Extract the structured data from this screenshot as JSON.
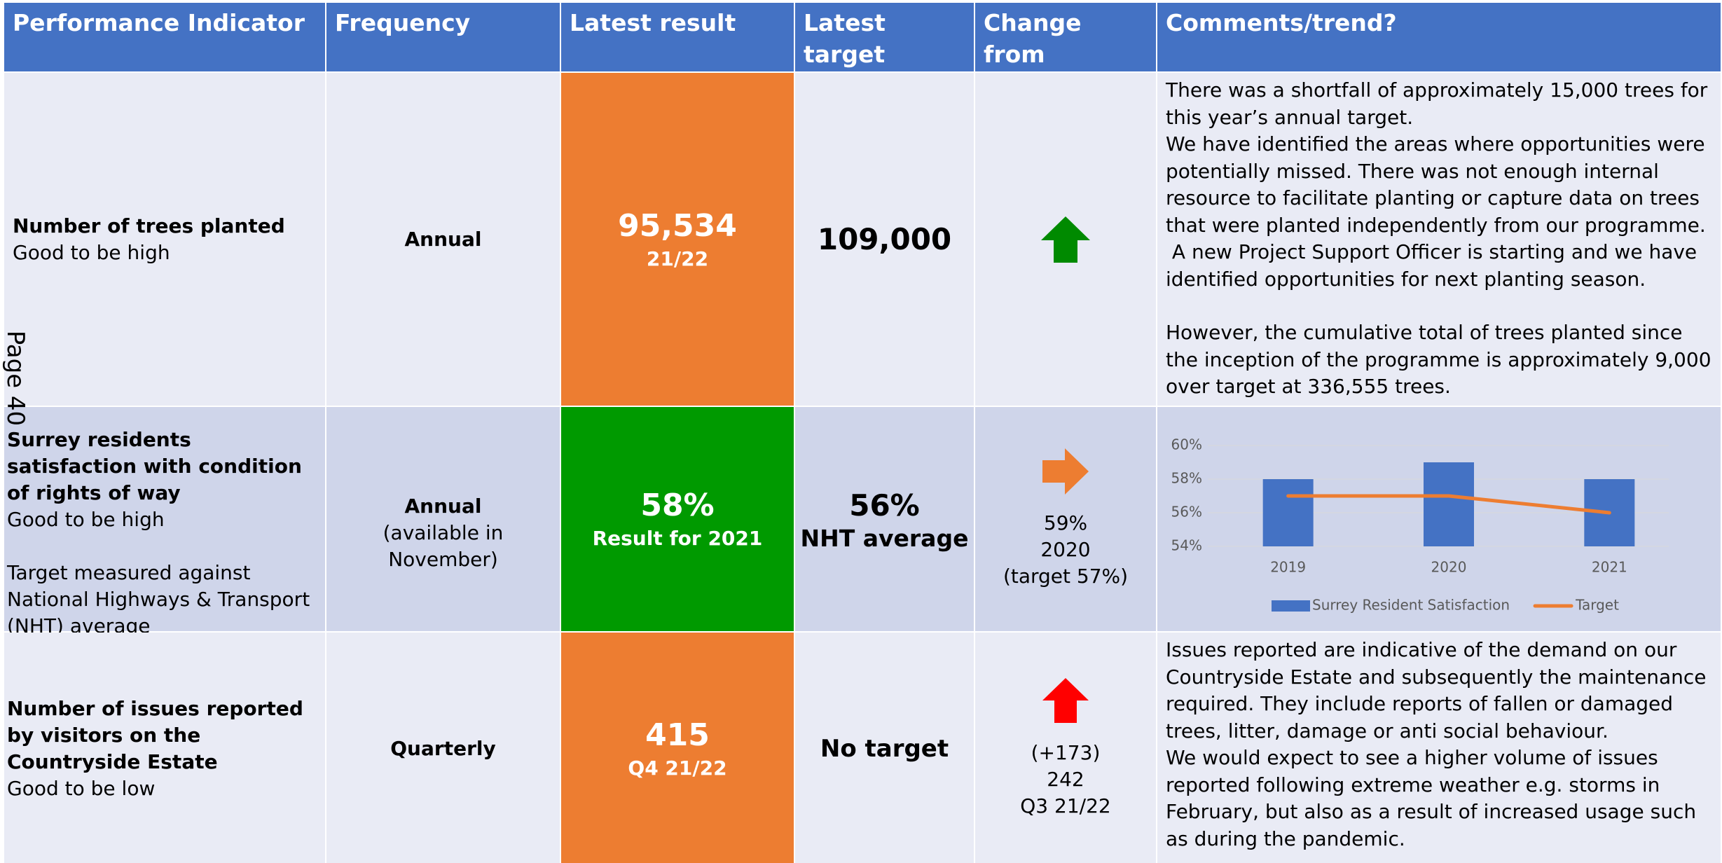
{
  "page_label": "Page 40",
  "table": {
    "headers": [
      "Performance Indicator",
      "Frequency",
      "Latest result",
      "Latest target",
      "Change from previous result",
      "Comments/trend?"
    ],
    "rows": [
      {
        "indicator": [
          "Number of trees planted"
        ],
        "polarity": "Good to be high",
        "frequency": "Annual",
        "result": "95,534",
        "result_note": "21/22",
        "target": "109,000",
        "comments": [
          "There was a shortfall of approximately 15,000 trees for this year’s annual target.",
          "We have identified the areas where opportunities were potentially missed. There was not enough internal resource to facilitate planting or capture data on trees that were planted independently from our programme.",
          " A new Project Support Officer is starting and we have identified opportunities for next planting season.",
          "However, the cumulative total of trees planted since the inception of the programme is approximately 9,000 over target at 336,555 trees."
        ]
      },
      {
        "indicator": [
          "Surrey residents satisfaction with condition of rights of way"
        ],
        "polarity": "Good to be high",
        "indicator_note": "Target measured against National Highways & Transport (NHT) average",
        "frequency": "Annual",
        "frequency_note": "(available in November)",
        "result": "58%",
        "result_note": "Result for 2021",
        "target": "56%",
        "target_note": "NHT average",
        "change": [
          "59%",
          "2020",
          "(target 57%)"
        ]
      },
      {
        "indicator": [
          "Number of issues reported by visitors on the Countryside Estate"
        ],
        "polarity": "Good to be low",
        "frequency": "Quarterly",
        "result": "415",
        "result_note": "Q4 21/22",
        "target": "No target",
        "change": [
          "(+173)",
          "242",
          "Q3 21/22"
        ],
        "comments": [
          "Issues reported are indicative of the demand on our Countryside Estate and subsequently the maintenance required. They include reports of fallen or damaged trees, litter, damage or anti social behaviour.",
          "We would expect to see a higher volume of issues reported following extreme weather e.g. storms in February, but also as a result of increased usage such as during the pandemic."
        ]
      }
    ]
  },
  "chart_data": {
    "type": "bar",
    "categories": [
      "2019",
      "2020",
      "2021"
    ],
    "series": [
      {
        "name": "Surrey Resident Satisfaction",
        "type": "bar",
        "color": "#4472c4",
        "values": [
          58,
          59,
          58
        ]
      },
      {
        "name": "Target",
        "type": "line",
        "color": "#ed7d31",
        "values": [
          57,
          57,
          56
        ]
      }
    ],
    "ylim": [
      54,
      60
    ],
    "yticks": [
      {
        "value": 54,
        "label": "54%"
      },
      {
        "value": 56,
        "label": "56%"
      },
      {
        "value": 58,
        "label": "58%"
      },
      {
        "value": 60,
        "label": "60%"
      }
    ],
    "grid": true,
    "legend": "bottom"
  }
}
